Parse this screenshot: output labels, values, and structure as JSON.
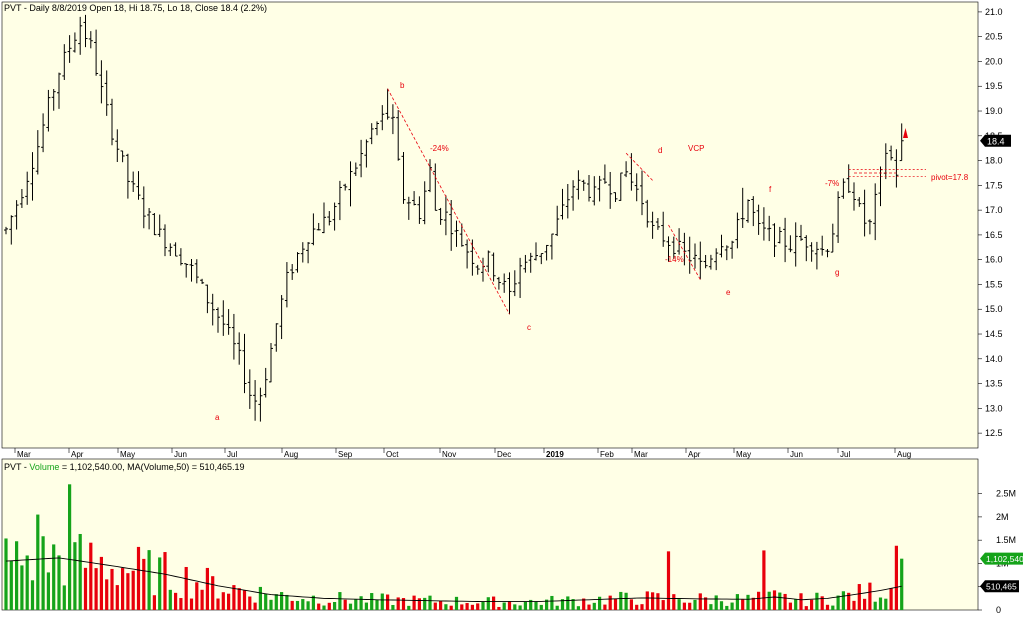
{
  "colors": {
    "background": "#ffffe6",
    "bar": "#000000",
    "annotation": "#e8000b",
    "volume_up": "#15a31a",
    "volume_down": "#e8000b",
    "ma_line": "#000000",
    "last_price_tag": "#000000",
    "last_volume_tag": "#15a31a"
  },
  "price_panel": {
    "header": "PVT - Daily 8/8/2019 Open 18, Hi 18.75, Lo 18, Close 18.4 (2.2%)",
    "last_price_tag": "18.4"
  },
  "volume_panel": {
    "header_prefix": "PVT - ",
    "header_volume_word": "Volume",
    "header_rest": " = 1,102,540.00, MA(Volume,50) = 510,465.19",
    "last_volume_tag": "1,102,540",
    "ma_tag": "510,465"
  },
  "chart_data": [
    {
      "type": "ohlc",
      "ticker": "PVT",
      "scale": "linear",
      "ylim": [
        12.2,
        21.2
      ],
      "y_ticks": [
        "12.5",
        "13.0",
        "13.5",
        "14.0",
        "14.5",
        "15.0",
        "15.5",
        "16.0",
        "16.5",
        "17.0",
        "17.5",
        "18.0",
        "18.5",
        "19.0",
        "19.5",
        "20.0",
        "20.5",
        "21.0"
      ],
      "x_ticks": [
        "Mar",
        "Apr",
        "May",
        "Jun",
        "Jul",
        "Aug",
        "Sep",
        "Oct",
        "Nov",
        "Dec",
        "2019",
        "Feb",
        "Mar",
        "Apr",
        "May",
        "Jun",
        "Jul",
        "Aug"
      ],
      "last_bar": {
        "date": "8/8/2019",
        "open": 18,
        "high": 18.75,
        "low": 18,
        "close": 18.4,
        "change_pct": 2.2
      },
      "swing_points": [
        {
          "label": "a",
          "x": "Jul",
          "price": 12.75
        },
        {
          "label": "b",
          "x": "Oct",
          "price": 19.45
        },
        {
          "label": "c",
          "x": "Dec",
          "price": 14.9
        },
        {
          "label": "d",
          "x": "Mar",
          "price": 18.15
        },
        {
          "label": "e",
          "x": "Apr-May",
          "price": 15.6
        },
        {
          "label": "f",
          "x": "May",
          "price": 17.4
        },
        {
          "label": "g",
          "x": "Jun-Jul",
          "price": 16.05
        }
      ],
      "annotations": [
        {
          "text": "-24%",
          "price": 18.25
        },
        {
          "text": "VCP",
          "price": 18.25
        },
        {
          "text": "-14%",
          "price": 16.0
        },
        {
          "text": "-7%",
          "price": 17.55
        },
        {
          "text": "pivot=17.8",
          "price": 17.7
        }
      ],
      "pivot": 17.8,
      "price_path": [
        [
          0,
          16.6
        ],
        [
          3,
          17.4
        ],
        [
          6,
          18.3
        ],
        [
          8,
          19.1
        ],
        [
          10,
          19.8
        ],
        [
          12,
          20.3
        ],
        [
          14,
          20.75
        ],
        [
          16,
          20.3
        ],
        [
          18,
          19.4
        ],
        [
          20,
          18.6
        ],
        [
          23,
          17.6
        ],
        [
          26,
          17.0
        ],
        [
          29,
          16.5
        ],
        [
          32,
          16.2
        ],
        [
          35,
          15.8
        ],
        [
          38,
          15.2
        ],
        [
          41,
          14.7
        ],
        [
          44,
          14.0
        ],
        [
          46,
          13.3
        ],
        [
          47.5,
          13.1
        ],
        [
          49,
          13.7
        ],
        [
          51,
          14.7
        ],
        [
          53,
          15.6
        ],
        [
          55,
          16.1
        ],
        [
          57,
          16.5
        ],
        [
          59,
          16.7
        ],
        [
          61,
          16.85
        ],
        [
          63,
          17.3
        ],
        [
          65,
          17.7
        ],
        [
          67,
          18.1
        ],
        [
          69,
          18.6
        ],
        [
          71,
          18.85
        ],
        [
          72.5,
          18.95
        ],
        [
          73.5,
          18.5
        ],
        [
          74.5,
          17.3
        ],
        [
          76,
          17.2
        ],
        [
          78,
          16.95
        ],
        [
          80,
          17.8
        ],
        [
          81,
          17.0
        ],
        [
          83,
          16.9
        ],
        [
          85,
          16.5
        ],
        [
          87,
          16.2
        ],
        [
          89,
          15.9
        ],
        [
          91,
          16.0
        ],
        [
          93,
          15.6
        ],
        [
          95,
          15.3
        ],
        [
          97,
          15.9
        ],
        [
          99,
          16.0
        ],
        [
          101,
          16.2
        ],
        [
          103,
          16.5
        ],
        [
          105,
          17.0
        ],
        [
          107,
          17.5
        ],
        [
          109,
          17.5
        ],
        [
          111,
          17.3
        ],
        [
          113,
          17.6
        ],
        [
          115,
          17.4
        ],
        [
          117,
          17.75
        ],
        [
          119,
          17.4
        ],
        [
          120.5,
          17.1
        ],
        [
          122,
          16.6
        ],
        [
          124,
          16.45
        ],
        [
          126,
          16.3
        ],
        [
          128,
          16.1
        ],
        [
          130,
          16.0
        ],
        [
          131.5,
          15.8
        ],
        [
          133,
          16.1
        ],
        [
          135,
          16.4
        ],
        [
          137,
          16.35
        ],
        [
          139,
          16.95
        ],
        [
          140,
          17.2
        ],
        [
          142,
          16.6
        ],
        [
          144,
          16.5
        ],
        [
          146,
          16.4
        ],
        [
          148,
          16.3
        ],
        [
          150,
          16.4
        ],
        [
          152,
          16.35
        ],
        [
          154,
          16.2
        ],
        [
          155.5,
          16.35
        ],
        [
          157,
          17.1
        ],
        [
          158.5,
          17.6
        ],
        [
          160,
          17.35
        ],
        [
          161.5,
          16.8
        ],
        [
          163,
          16.7
        ],
        [
          164.5,
          17.4
        ],
        [
          166,
          18.2
        ],
        [
          167.5,
          17.95
        ],
        [
          168.5,
          17.6
        ],
        [
          169.5,
          18.4
        ]
      ]
    },
    {
      "type": "bar",
      "series_label": "Volume",
      "ma_label": "MA(Volume,50)",
      "last_volume": 1102540,
      "ma_value": 510465.19,
      "ylim": [
        0,
        2900000
      ],
      "y_ticks": [
        "0",
        "500K",
        "1M",
        "1.5M",
        "2M",
        "2.5M"
      ],
      "spike_bars": [
        {
          "index": 6,
          "value": 2050000
        },
        {
          "index": 12,
          "value": 2700000
        },
        {
          "index": 125,
          "value": 1260000
        },
        {
          "index": 143,
          "value": 1280000
        },
        {
          "index": 168,
          "value": 1380000
        },
        {
          "index": 169,
          "value": 1102540
        }
      ],
      "ma_path": [
        [
          0,
          1050000
        ],
        [
          10,
          1120000
        ],
        [
          20,
          950000
        ],
        [
          30,
          770000
        ],
        [
          40,
          520000
        ],
        [
          50,
          330000
        ],
        [
          60,
          250000
        ],
        [
          70,
          220000
        ],
        [
          80,
          200000
        ],
        [
          90,
          180000
        ],
        [
          100,
          180000
        ],
        [
          110,
          220000
        ],
        [
          120,
          260000
        ],
        [
          130,
          240000
        ],
        [
          140,
          230000
        ],
        [
          145,
          280000
        ],
        [
          150,
          220000
        ],
        [
          155,
          250000
        ],
        [
          160,
          330000
        ],
        [
          165,
          420000
        ],
        [
          169,
          510465
        ]
      ]
    }
  ]
}
